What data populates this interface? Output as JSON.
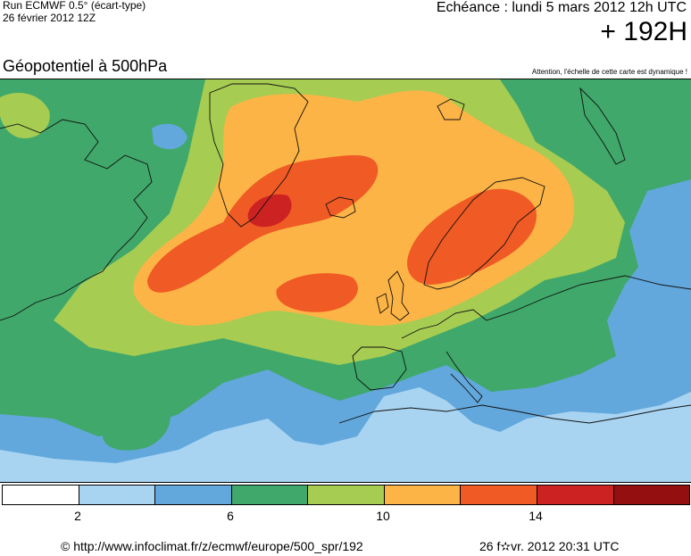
{
  "header": {
    "run_title": "Run ECMWF 0.5° (écart-type)",
    "run_date": "26 février 2012 12Z",
    "echeance": "Echéance : lundi 5 mars 2012 12h UTC",
    "lead_time": "+ 192H",
    "field_title": "Géopotentiel à 500hPa",
    "note": "Attention, l'échelle de cette carte est dynamique !"
  },
  "colors": {
    "scale": [
      "#ffffff",
      "#a8d4f2",
      "#62a8dc",
      "#3fa86a",
      "#a6cc52",
      "#fdb446",
      "#f05a24",
      "#cc2222",
      "#941010"
    ],
    "land_border": "#111111"
  },
  "legend": {
    "ticks": [
      "2",
      "6",
      "10",
      "14"
    ]
  },
  "footer": {
    "url": "© http://www.infoclimat.fr/z/ecmwf/europe/500_spr/192",
    "generated": "26 f✫vr. 2012 20:31 UTC"
  }
}
